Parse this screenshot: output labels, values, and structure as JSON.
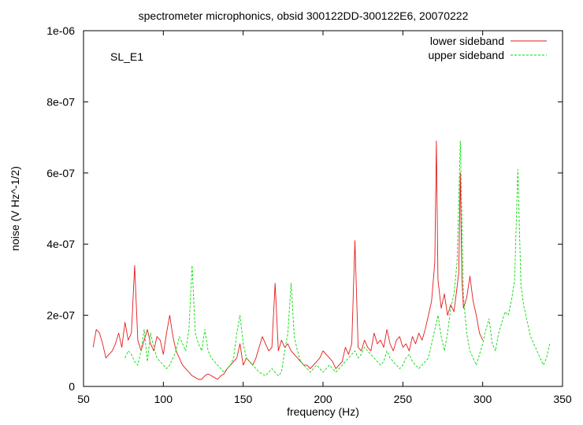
{
  "chart_data": {
    "type": "line",
    "title": "spectrometer microphonics, obsid 300122DD-300122E6, 20070222",
    "xlabel": "frequency (Hz)",
    "ylabel": "noise (V Hz^-1/2)",
    "annotation": "SL_E1",
    "xlim": [
      50,
      350
    ],
    "ylim": [
      0,
      1e-06
    ],
    "x_ticks": [
      50,
      100,
      150,
      200,
      250,
      300,
      350
    ],
    "x_tick_labels": [
      "50",
      "100",
      "150",
      "200",
      "250",
      "300",
      "350"
    ],
    "y_ticks": [
      0,
      2e-07,
      4e-07,
      6e-07,
      8e-07,
      1e-06
    ],
    "y_tick_labels": [
      "0",
      "2e-07",
      "4e-07",
      "6e-07",
      "8e-07",
      "1e-06"
    ],
    "grid": false,
    "legend_position": "top-right",
    "series": [
      {
        "name": "lower sideband",
        "color": "#e41a1c",
        "style": "solid",
        "x": [
          56,
          58,
          60,
          62,
          64,
          66,
          68,
          70,
          72,
          74,
          76,
          78,
          80,
          82,
          84,
          86,
          88,
          90,
          92,
          94,
          96,
          98,
          100,
          102,
          104,
          106,
          108,
          110,
          112,
          114,
          116,
          118,
          120,
          122,
          124,
          126,
          128,
          130,
          132,
          134,
          136,
          138,
          140,
          142,
          144,
          146,
          148,
          150,
          152,
          154,
          156,
          158,
          160,
          162,
          164,
          166,
          168,
          170,
          172,
          174,
          176,
          178,
          180,
          182,
          184,
          186,
          188,
          190,
          192,
          194,
          196,
          198,
          200,
          202,
          204,
          206,
          208,
          210,
          212,
          214,
          216,
          218,
          220,
          222,
          224,
          226,
          228,
          230,
          232,
          234,
          236,
          238,
          240,
          242,
          244,
          246,
          248,
          250,
          252,
          254,
          256,
          258,
          260,
          262,
          264,
          266,
          268,
          270,
          271,
          272,
          274,
          276,
          278,
          280,
          282,
          284,
          285,
          286,
          287,
          288,
          290,
          292,
          294,
          296,
          298,
          300
        ],
        "values": [
          1.1e-07,
          1.6e-07,
          1.5e-07,
          1.2e-07,
          8e-08,
          9e-08,
          1e-07,
          1.2e-07,
          1.5e-07,
          1.1e-07,
          1.8e-07,
          1.3e-07,
          1.5e-07,
          3.4e-07,
          1.3e-07,
          1e-07,
          1.3e-07,
          1.6e-07,
          1.2e-07,
          1e-07,
          1.4e-07,
          1.3e-07,
          9e-08,
          1.5e-07,
          2e-07,
          1.4e-07,
          1e-07,
          8e-08,
          6e-08,
          5e-08,
          4e-08,
          3e-08,
          2.5e-08,
          2e-08,
          2e-08,
          3e-08,
          3.5e-08,
          3e-08,
          2.5e-08,
          2e-08,
          3e-08,
          3.5e-08,
          5e-08,
          6e-08,
          7e-08,
          8e-08,
          1.2e-07,
          6e-08,
          8e-08,
          7e-08,
          6e-08,
          8e-08,
          1.1e-07,
          1.4e-07,
          1.2e-07,
          1e-07,
          1.1e-07,
          2.9e-07,
          1e-07,
          1.3e-07,
          1.1e-07,
          1.2e-07,
          1e-07,
          9e-08,
          8e-08,
          7e-08,
          6e-08,
          6e-08,
          5e-08,
          6e-08,
          7e-08,
          8e-08,
          1e-07,
          9e-08,
          8e-08,
          7e-08,
          5e-08,
          6e-08,
          7e-08,
          1.1e-07,
          9e-08,
          1.2e-07,
          4.1e-07,
          1.1e-07,
          1e-07,
          1.3e-07,
          1.1e-07,
          1e-07,
          1.5e-07,
          1.2e-07,
          1.3e-07,
          1.1e-07,
          1.6e-07,
          1.2e-07,
          1e-07,
          1.3e-07,
          1.4e-07,
          1.1e-07,
          1.2e-07,
          1e-07,
          1.4e-07,
          1.2e-07,
          1.5e-07,
          1.3e-07,
          1.6e-07,
          2e-07,
          2.4e-07,
          3.5e-07,
          6.9e-07,
          3e-07,
          2.2e-07,
          2.6e-07,
          2e-07,
          2.3e-07,
          2.1e-07,
          2.8e-07,
          3.2e-07,
          6e-07,
          3e-07,
          2.2e-07,
          2.5e-07,
          3.1e-07,
          2.4e-07,
          2e-07,
          1.5e-07,
          1.3e-07
        ]
      },
      {
        "name": "upper sideband",
        "color": "#00dd00",
        "style": "dashed",
        "x": [
          76,
          78,
          80,
          82,
          84,
          86,
          88,
          90,
          92,
          94,
          96,
          98,
          100,
          102,
          104,
          106,
          108,
          110,
          112,
          114,
          116,
          118,
          120,
          122,
          124,
          126,
          128,
          130,
          132,
          134,
          136,
          138,
          140,
          142,
          144,
          146,
          148,
          150,
          152,
          154,
          156,
          158,
          160,
          162,
          164,
          166,
          168,
          170,
          172,
          174,
          176,
          178,
          180,
          182,
          184,
          186,
          188,
          190,
          192,
          194,
          196,
          198,
          200,
          202,
          204,
          206,
          208,
          210,
          212,
          214,
          216,
          218,
          220,
          222,
          224,
          226,
          228,
          230,
          232,
          234,
          236,
          238,
          240,
          242,
          244,
          246,
          248,
          250,
          252,
          254,
          256,
          258,
          260,
          262,
          264,
          266,
          268,
          270,
          272,
          274,
          276,
          278,
          280,
          282,
          284,
          286,
          288,
          290,
          292,
          294,
          296,
          298,
          300,
          302,
          304,
          306,
          308,
          310,
          312,
          314,
          316,
          318,
          320,
          322,
          324,
          326,
          328,
          330,
          332,
          334,
          336,
          338,
          340,
          342
        ],
        "values": [
          8e-08,
          1e-07,
          9e-08,
          7e-08,
          6e-08,
          1e-07,
          1.6e-07,
          7e-08,
          1.5e-07,
          1.1e-07,
          8e-08,
          7e-08,
          6e-08,
          5e-08,
          6e-08,
          8e-08,
          1e-07,
          1.4e-07,
          1.2e-07,
          1e-07,
          1.6e-07,
          3.4e-07,
          1.5e-07,
          1.2e-07,
          1e-07,
          1.6e-07,
          1e-07,
          8e-08,
          7e-08,
          6e-08,
          5e-08,
          4e-08,
          5e-08,
          6e-08,
          8e-08,
          1.5e-07,
          2e-07,
          1.2e-07,
          8e-08,
          7e-08,
          6e-08,
          5e-08,
          4e-08,
          3.5e-08,
          3e-08,
          4e-08,
          5e-08,
          4e-08,
          3e-08,
          4e-08,
          1e-07,
          1.5e-07,
          2.9e-07,
          1.4e-07,
          1e-07,
          7e-08,
          6e-08,
          5e-08,
          4e-08,
          5e-08,
          6e-08,
          5e-08,
          4e-08,
          5e-08,
          6e-08,
          5e-08,
          4e-08,
          5e-08,
          6e-08,
          7e-08,
          8e-08,
          9e-08,
          1e-07,
          8e-08,
          9e-08,
          1.1e-07,
          1e-07,
          9e-08,
          8e-08,
          7e-08,
          6e-08,
          7e-08,
          1e-07,
          8e-08,
          7e-08,
          6e-08,
          5e-08,
          6e-08,
          8e-08,
          9e-08,
          7e-08,
          6e-08,
          5e-08,
          6e-08,
          7e-08,
          8e-08,
          1.2e-07,
          1.6e-07,
          2e-07,
          1.4e-07,
          1e-07,
          1.5e-07,
          2.2e-07,
          2.6e-07,
          3.5e-07,
          6.9e-07,
          2.5e-07,
          1.5e-07,
          1e-07,
          8e-08,
          6e-08,
          9e-08,
          1.2e-07,
          1.6e-07,
          1.9e-07,
          1.2e-07,
          1e-07,
          1.5e-07,
          1.8e-07,
          2.1e-07,
          2e-07,
          2.4e-07,
          3e-07,
          6.1e-07,
          2.8e-07,
          2.2e-07,
          1.8e-07,
          1.4e-07,
          1.2e-07,
          1e-07,
          8e-08,
          6e-08,
          8e-08,
          1.2e-07
        ]
      }
    ]
  }
}
